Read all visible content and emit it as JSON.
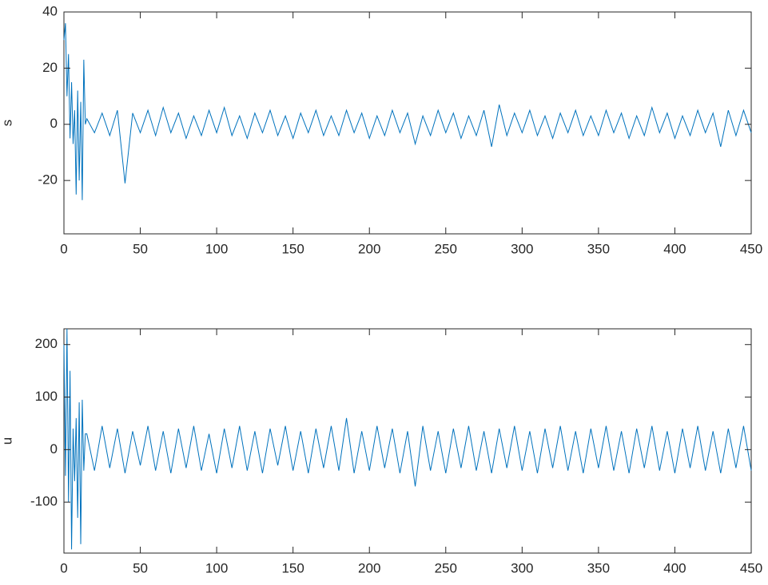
{
  "chart_data": [
    {
      "type": "line",
      "ylabel": "s",
      "color": "#0072bd",
      "xlim": [
        0,
        450
      ],
      "xticks": [
        0,
        50,
        100,
        150,
        200,
        250,
        300,
        350,
        400,
        450
      ],
      "ylim": [
        -39,
        40
      ],
      "yticks": [
        -20,
        0,
        20,
        40
      ],
      "x": [
        0,
        1,
        2,
        3,
        4,
        5,
        6,
        7,
        8,
        9,
        10,
        11,
        12,
        13,
        14,
        15,
        20,
        25,
        30,
        35,
        40,
        45,
        50,
        55,
        60,
        65,
        70,
        75,
        80,
        85,
        90,
        95,
        100,
        105,
        110,
        115,
        120,
        125,
        130,
        135,
        140,
        145,
        150,
        155,
        160,
        165,
        170,
        175,
        180,
        185,
        190,
        195,
        200,
        205,
        210,
        215,
        220,
        225,
        230,
        235,
        240,
        245,
        250,
        255,
        260,
        265,
        270,
        275,
        280,
        285,
        290,
        295,
        300,
        305,
        310,
        315,
        320,
        325,
        330,
        335,
        340,
        345,
        350,
        355,
        360,
        365,
        370,
        375,
        380,
        385,
        390,
        395,
        400,
        405,
        410,
        415,
        420,
        425,
        430,
        435,
        440,
        445,
        450
      ],
      "values": [
        30,
        36,
        10,
        25,
        -5,
        15,
        -7,
        5,
        -25,
        12,
        -20,
        8,
        -27,
        23,
        0,
        2,
        -3,
        4,
        -4,
        5,
        -21,
        4,
        -3,
        5,
        -4,
        6,
        -3,
        4,
        -5,
        3,
        -4,
        5,
        -3,
        6,
        -4,
        3,
        -5,
        4,
        -3,
        5,
        -4,
        3,
        -5,
        4,
        -3,
        5,
        -4,
        3,
        -4,
        5,
        -3,
        4,
        -5,
        3,
        -4,
        5,
        -3,
        4,
        -7,
        3,
        -4,
        5,
        -3,
        4,
        -5,
        3,
        -4,
        5,
        -8,
        7,
        -4,
        4,
        -3,
        5,
        -4,
        3,
        -5,
        4,
        -3,
        5,
        -4,
        3,
        -4,
        5,
        -3,
        4,
        -5,
        3,
        -4,
        6,
        -3,
        4,
        -5,
        3,
        -4,
        5,
        -3,
        4,
        -8,
        5,
        -4,
        5,
        -3
      ]
    },
    {
      "type": "line",
      "ylabel": "u",
      "color": "#0072bd",
      "xlim": [
        0,
        450
      ],
      "xticks": [
        0,
        50,
        100,
        150,
        200,
        250,
        300,
        350,
        400,
        450
      ],
      "ylim": [
        -197,
        230
      ],
      "yticks": [
        -100,
        0,
        100,
        200
      ],
      "x": [
        0,
        1,
        2,
        3,
        4,
        5,
        6,
        7,
        8,
        9,
        10,
        11,
        12,
        13,
        14,
        15,
        20,
        25,
        30,
        35,
        40,
        45,
        50,
        55,
        60,
        65,
        70,
        75,
        80,
        85,
        90,
        95,
        100,
        105,
        110,
        115,
        120,
        125,
        130,
        135,
        140,
        145,
        150,
        155,
        160,
        165,
        170,
        175,
        180,
        185,
        190,
        195,
        200,
        205,
        210,
        215,
        220,
        225,
        230,
        235,
        240,
        245,
        250,
        255,
        260,
        265,
        270,
        275,
        280,
        285,
        290,
        295,
        300,
        305,
        310,
        315,
        320,
        325,
        330,
        335,
        340,
        345,
        350,
        355,
        360,
        365,
        370,
        375,
        380,
        385,
        390,
        395,
        400,
        405,
        410,
        415,
        420,
        425,
        430,
        435,
        440,
        445,
        450
      ],
      "values": [
        200,
        -50,
        230,
        -100,
        150,
        -190,
        40,
        -60,
        60,
        -130,
        90,
        -180,
        95,
        -40,
        30,
        30,
        -40,
        45,
        -35,
        40,
        -45,
        35,
        -30,
        45,
        -40,
        35,
        -45,
        40,
        -35,
        45,
        -40,
        30,
        -45,
        40,
        -35,
        45,
        -40,
        35,
        -45,
        40,
        -30,
        45,
        -40,
        35,
        -45,
        40,
        -35,
        45,
        -40,
        60,
        -45,
        35,
        -40,
        45,
        -35,
        40,
        -45,
        35,
        -70,
        45,
        -40,
        35,
        -45,
        40,
        -35,
        45,
        -40,
        35,
        -45,
        40,
        -35,
        45,
        -40,
        35,
        -45,
        40,
        -35,
        45,
        -40,
        35,
        -45,
        40,
        -35,
        45,
        -40,
        35,
        -45,
        40,
        -35,
        45,
        -40,
        35,
        -45,
        40,
        -35,
        45,
        -40,
        35,
        -45,
        40,
        -35,
        45,
        -40
      ]
    }
  ]
}
